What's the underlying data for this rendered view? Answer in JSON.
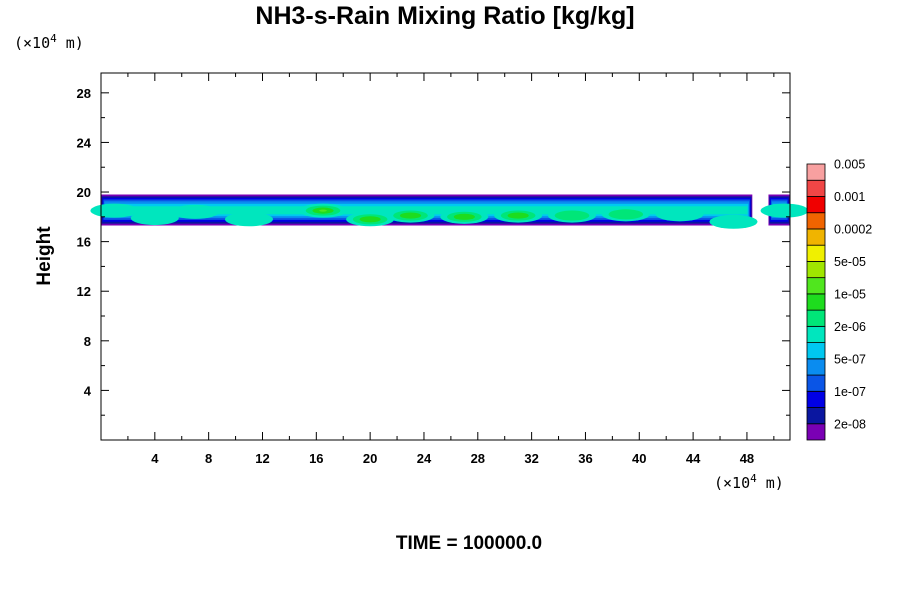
{
  "chart_data": {
    "type": "heatmap",
    "title": "NH3-s-Rain Mixing Ratio [kg/kg]",
    "ylabel": "Height",
    "x_unit": {
      "prefix": "(×10",
      "exp": "4",
      "suffix": " m)"
    },
    "y_unit": {
      "prefix": "(×10",
      "exp": "4",
      "suffix": " m)"
    },
    "xlim": [
      0,
      51.2
    ],
    "ylim": [
      0,
      29.6
    ],
    "x_ticks": [
      4,
      8,
      12,
      16,
      20,
      24,
      28,
      32,
      36,
      40,
      44,
      48
    ],
    "y_ticks": [
      4,
      8,
      12,
      16,
      20,
      24,
      28
    ],
    "time_label": "TIME = 100000.0",
    "colorbar": {
      "colors": [
        "#7a00b4",
        "#0a16a0",
        "#0000e6",
        "#0a55e6",
        "#0a8cf0",
        "#00c8f0",
        "#00e6be",
        "#00e678",
        "#1edc1e",
        "#50e61e",
        "#a0e600",
        "#f0f000",
        "#f0b400",
        "#f06400",
        "#f00000",
        "#f04646",
        "#f8a0a0"
      ],
      "labels": [
        "2e-08",
        "1e-07",
        "5e-07",
        "2e-06",
        "1e-05",
        "5e-05",
        "0.0002",
        "0.001",
        "0.005"
      ]
    },
    "cloud_layer": {
      "x_range": [
        0,
        51.2
      ],
      "height_range": [
        17.3,
        19.8
      ],
      "gap_x": [
        48.4,
        49.6
      ],
      "cores": [
        {
          "x": 1.0,
          "y": 18.5,
          "level": 6
        },
        {
          "x": 4.0,
          "y": 17.9,
          "level": 6
        },
        {
          "x": 7.0,
          "y": 18.4,
          "level": 6
        },
        {
          "x": 11.0,
          "y": 17.8,
          "level": 6
        },
        {
          "x": 16.5,
          "y": 18.5,
          "level": 9
        },
        {
          "x": 20.0,
          "y": 17.8,
          "level": 8
        },
        {
          "x": 23.0,
          "y": 18.1,
          "level": 8
        },
        {
          "x": 27.0,
          "y": 18.0,
          "level": 8
        },
        {
          "x": 31.0,
          "y": 18.1,
          "level": 8
        },
        {
          "x": 35.0,
          "y": 18.1,
          "level": 7
        },
        {
          "x": 39.0,
          "y": 18.2,
          "level": 7
        },
        {
          "x": 43.0,
          "y": 18.2,
          "level": 6
        },
        {
          "x": 47.0,
          "y": 17.6,
          "level": 6
        },
        {
          "x": 50.8,
          "y": 18.5,
          "level": 6
        }
      ]
    }
  }
}
